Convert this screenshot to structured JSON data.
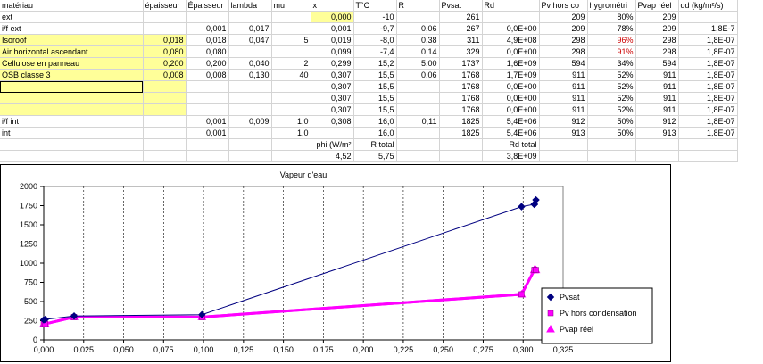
{
  "table": {
    "columns": [
      {
        "label": "matériau"
      },
      {
        "label": "épaisseur"
      },
      {
        "label": "Épaisseur"
      },
      {
        "label": "lambda"
      },
      {
        "label": "mu"
      },
      {
        "label": "x"
      },
      {
        "label": "T°C"
      },
      {
        "label": "R"
      },
      {
        "label": "Pvsat"
      },
      {
        "label": "Rd"
      },
      {
        "label": "Pv hors co"
      },
      {
        "label": "hygrométri"
      },
      {
        "label": "Pvap réel"
      },
      {
        "label": "qd (kg/m²/s)"
      }
    ],
    "rows": [
      [
        "ext",
        "",
        "",
        "",
        "",
        "0,000",
        "-10",
        "",
        "261",
        "",
        "209",
        "80%",
        "209",
        ""
      ],
      [
        "i/f ext",
        "",
        "0,001",
        "0,017",
        "",
        "0,001",
        "-9,7",
        "0,06",
        "267",
        "0,0E+00",
        "209",
        "78%",
        "209",
        "1,8E-7"
      ],
      [
        "Isoroof",
        "0,018",
        "0,018",
        "0,047",
        "5",
        "0,019",
        "-8,0",
        "0,38",
        "311",
        "4,9E+08",
        "298",
        "96%",
        "298",
        "1,8E-07"
      ],
      [
        "Air horizontal ascendant",
        "0,080",
        "0,080",
        "",
        "",
        "0,099",
        "-7,4",
        "0,14",
        "329",
        "0,0E+00",
        "298",
        "91%",
        "298",
        "1,8E-07"
      ],
      [
        "Cellulose en panneau",
        "0,200",
        "0,200",
        "0,040",
        "2",
        "0,299",
        "15,2",
        "5,00",
        "1737",
        "1,6E+09",
        "594",
        "34%",
        "594",
        "1,8E-07"
      ],
      [
        "OSB classe 3",
        "0,008",
        "0,008",
        "0,130",
        "40",
        "0,307",
        "15,5",
        "0,06",
        "1768",
        "1,7E+09",
        "911",
        "52%",
        "911",
        "1,8E-07"
      ],
      [
        "",
        "",
        "",
        "",
        "",
        "0,307",
        "15,5",
        "",
        "1768",
        "0,0E+00",
        "911",
        "52%",
        "911",
        "1,8E-07"
      ],
      [
        "",
        "",
        "",
        "",
        "",
        "0,307",
        "15,5",
        "",
        "1768",
        "0,0E+00",
        "911",
        "52%",
        "911",
        "1,8E-07"
      ],
      [
        "",
        "",
        "",
        "",
        "",
        "0,307",
        "15,5",
        "",
        "1768",
        "0,0E+00",
        "911",
        "52%",
        "911",
        "1,8E-07"
      ],
      [
        "i/f int",
        "",
        "0,001",
        "0,009",
        "1,0",
        "0,308",
        "16,0",
        "0,11",
        "1825",
        "5,4E+06",
        "912",
        "50%",
        "912",
        "1,8E-07"
      ],
      [
        "int",
        "",
        "0,001",
        "",
        "1,0",
        "",
        "16,0",
        "",
        "1825",
        "5,4E+06",
        "913",
        "50%",
        "913",
        "1,8E-07"
      ],
      [
        "",
        "",
        "",
        "",
        "",
        "phi (W/m²",
        "R total",
        "",
        "",
        "Rd total",
        "",
        "",
        "",
        ""
      ],
      [
        "",
        "",
        "",
        "",
        "",
        "4,52",
        "5,75",
        "",
        "",
        "3,8E+09",
        "",
        "",
        "",
        ""
      ]
    ]
  },
  "chart_data": {
    "type": "scatter",
    "title": "Vapeur d'eau",
    "xlabel": "",
    "ylabel": "",
    "xlim": [
      0,
      0.325
    ],
    "ylim": [
      0,
      2000
    ],
    "xticks": [
      "0,000",
      "0,025",
      "0,050",
      "0,075",
      "0,100",
      "0,125",
      "0,150",
      "0,175",
      "0,200",
      "0,225",
      "0,250",
      "0,275",
      "0,300",
      "0,325"
    ],
    "yticks": [
      "0",
      "250",
      "500",
      "750",
      "1000",
      "1250",
      "1500",
      "1750",
      "2000"
    ],
    "grid": "vertical dashed",
    "legend_position": "right",
    "series": [
      {
        "name": "Pvsat",
        "color": "#000080",
        "marker": "diamond",
        "x": [
          0.0,
          0.001,
          0.019,
          0.099,
          0.299,
          0.307,
          0.307,
          0.307,
          0.307,
          0.308
        ],
        "y": [
          261,
          267,
          311,
          329,
          1737,
          1768,
          1768,
          1768,
          1768,
          1825
        ]
      },
      {
        "name": "Pv hors condensation",
        "color": "#ff00ff",
        "marker": "square",
        "x": [
          0.0,
          0.001,
          0.019,
          0.099,
          0.299,
          0.307,
          0.307,
          0.307,
          0.307,
          0.308
        ],
        "y": [
          209,
          209,
          298,
          298,
          594,
          911,
          911,
          911,
          911,
          912
        ]
      },
      {
        "name": "Pvap réel",
        "color": "#ff00ff",
        "marker": "triangle",
        "x": [
          0.0,
          0.001,
          0.019,
          0.099,
          0.299,
          0.307,
          0.307,
          0.307,
          0.307,
          0.308
        ],
        "y": [
          209,
          209,
          298,
          298,
          594,
          911,
          911,
          911,
          911,
          912
        ]
      }
    ]
  }
}
